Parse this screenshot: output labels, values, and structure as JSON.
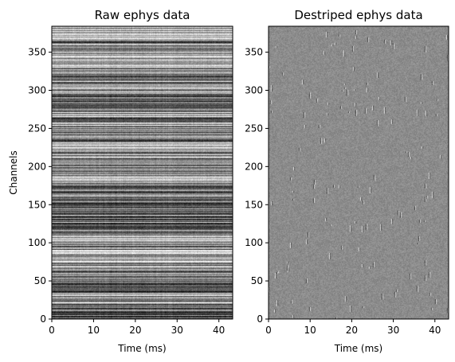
{
  "chart_data": [
    {
      "type": "heatmap",
      "title": "Raw ephys data",
      "xlabel": "Time (ms)",
      "ylabel": "Channels",
      "xlim": [
        0,
        43.3
      ],
      "ylim": [
        0,
        384
      ],
      "xticks": [
        0,
        10,
        20,
        30,
        40
      ],
      "yticks": [
        0,
        50,
        100,
        150,
        200,
        250,
        300,
        350
      ],
      "colormap": "gray",
      "colors": {
        "low": "#000000",
        "high": "#ffffff",
        "mid": "#8c8c8c"
      },
      "pattern": "horizontal per-channel stripes with occasional dark vertical spikes"
    },
    {
      "type": "heatmap",
      "title": "Destriped ephys data",
      "xlabel": "Time (ms)",
      "ylabel": "",
      "xlim": [
        0,
        43.3
      ],
      "ylim": [
        0,
        384
      ],
      "xticks": [
        0,
        10,
        20,
        30,
        40
      ],
      "yticks": [
        0,
        50,
        100,
        150,
        200,
        250,
        300,
        350
      ],
      "colormap": "gray",
      "colors": {
        "low": "#000000",
        "high": "#ffffff",
        "mid": "#8c8c8c"
      },
      "pattern": "uniform mid-gray noise with small localized spike blobs"
    }
  ]
}
